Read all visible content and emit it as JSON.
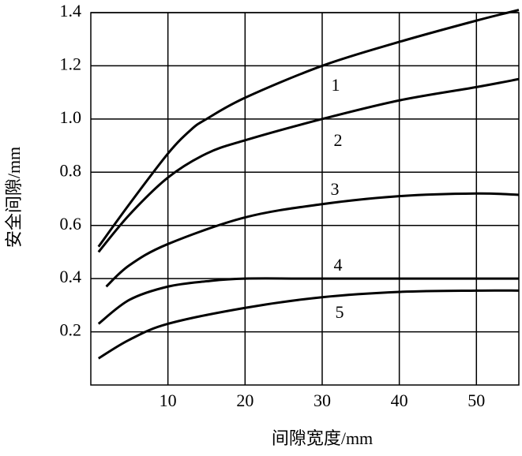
{
  "chart_data": {
    "type": "line",
    "xlabel": "间隙宽度/mm",
    "ylabel": "安全间隙/mm",
    "xlim": [
      0,
      55.5
    ],
    "xticks": [
      10,
      20,
      30,
      40,
      50
    ],
    "ylim": [
      0,
      1.4
    ],
    "yticks": [
      0.2,
      0.4,
      0.6,
      0.8,
      {
        "value": 1.0,
        "label": "1.0"
      },
      1.2,
      1.4
    ],
    "grid": true,
    "series": [
      {
        "name": "1",
        "color": "#000000",
        "x": [
          1,
          5,
          10,
          13,
          15,
          20,
          30,
          40,
          50,
          55.5
        ],
        "values": [
          0.52,
          0.68,
          0.87,
          0.96,
          1.0,
          1.08,
          1.2,
          1.29,
          1.37,
          1.41
        ]
      },
      {
        "name": "2",
        "color": "#000000",
        "x": [
          1,
          5,
          10,
          15,
          20,
          30,
          40,
          50,
          55.5
        ],
        "values": [
          0.5,
          0.64,
          0.78,
          0.87,
          0.92,
          1.0,
          1.07,
          1.12,
          1.15
        ]
      },
      {
        "name": "3",
        "color": "#000000",
        "x": [
          2,
          5,
          10,
          20,
          30,
          40,
          50,
          55.5
        ],
        "values": [
          0.37,
          0.45,
          0.53,
          0.63,
          0.68,
          0.71,
          0.72,
          0.715
        ]
      },
      {
        "name": "4",
        "color": "#000000",
        "x": [
          1,
          5,
          10,
          15,
          20,
          30,
          55.5
        ],
        "values": [
          0.23,
          0.32,
          0.37,
          0.39,
          0.4,
          0.4,
          0.4
        ]
      },
      {
        "name": "5",
        "color": "#000000",
        "x": [
          1,
          5,
          10,
          20,
          30,
          40,
          50,
          55.5
        ],
        "values": [
          0.1,
          0.17,
          0.23,
          0.29,
          0.33,
          0.35,
          0.355,
          0.355
        ]
      }
    ]
  }
}
